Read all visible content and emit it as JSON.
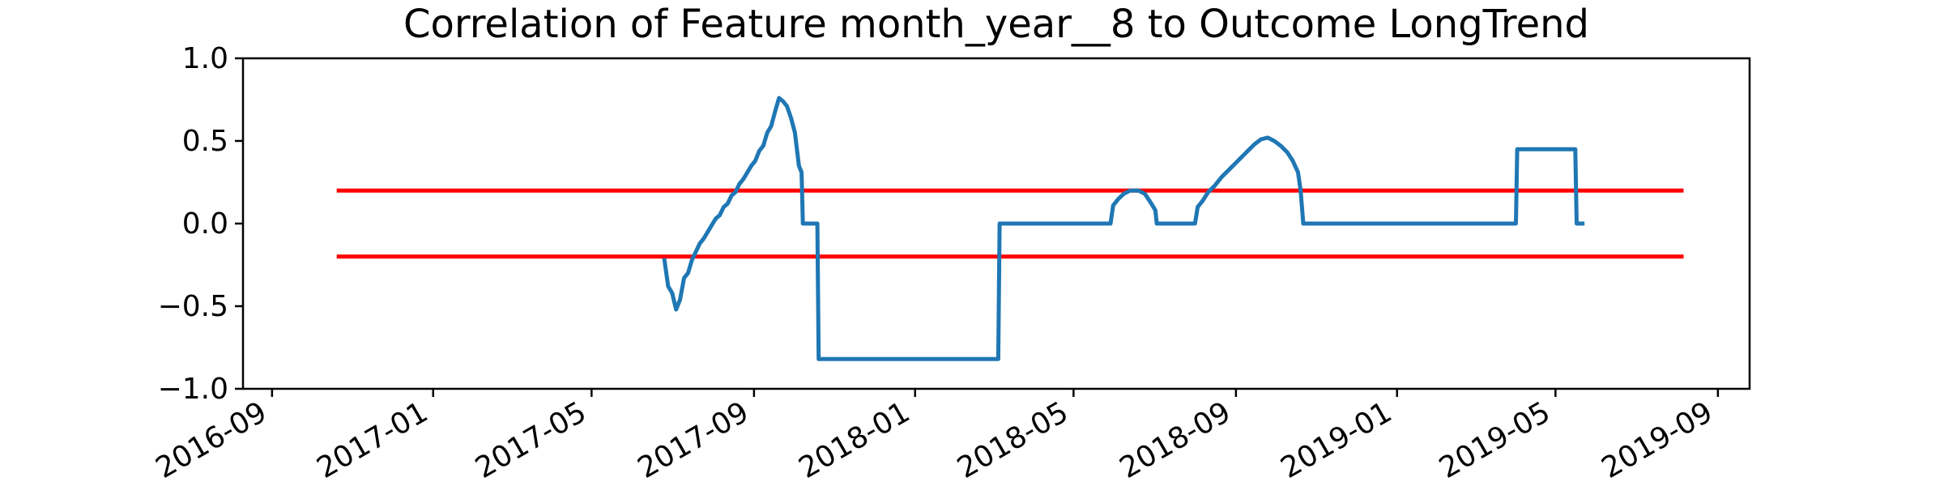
{
  "chart_data": {
    "type": "line",
    "title": "Correlation of Feature month_year__8 to Outcome LongTrend",
    "xlabel": "",
    "ylabel": "",
    "x_axis": "date",
    "xlim": [
      "2016-08-10",
      "2019-09-25"
    ],
    "ylim": [
      -1.0,
      1.0
    ],
    "x_ticks": [
      "2016-09",
      "2017-01",
      "2017-05",
      "2017-09",
      "2018-01",
      "2018-05",
      "2018-09",
      "2019-01",
      "2019-05",
      "2019-09"
    ],
    "y_ticks": [
      "1.0",
      "0.5",
      "0.0",
      "−0.5",
      "−1.0"
    ],
    "grid": false,
    "legend": "none",
    "series": [
      {
        "color": "#1f77b4",
        "points": [
          [
            "2017-06-25",
            -0.21
          ],
          [
            "2017-06-28",
            -0.38
          ],
          [
            "2017-07-01",
            -0.42
          ],
          [
            "2017-07-04",
            -0.52
          ],
          [
            "2017-07-07",
            -0.46
          ],
          [
            "2017-07-10",
            -0.33
          ],
          [
            "2017-07-13",
            -0.3
          ],
          [
            "2017-07-16",
            -0.22
          ],
          [
            "2017-07-19",
            -0.17
          ],
          [
            "2017-07-22",
            -0.12
          ],
          [
            "2017-07-25",
            -0.09
          ],
          [
            "2017-07-28",
            -0.05
          ],
          [
            "2017-07-31",
            -0.01
          ],
          [
            "2017-08-03",
            0.03
          ],
          [
            "2017-08-06",
            0.05
          ],
          [
            "2017-08-09",
            0.1
          ],
          [
            "2017-08-12",
            0.12
          ],
          [
            "2017-08-15",
            0.17
          ],
          [
            "2017-08-18",
            0.19
          ],
          [
            "2017-08-21",
            0.24
          ],
          [
            "2017-08-24",
            0.27
          ],
          [
            "2017-08-27",
            0.31
          ],
          [
            "2017-08-30",
            0.35
          ],
          [
            "2017-09-02",
            0.38
          ],
          [
            "2017-09-05",
            0.44
          ],
          [
            "2017-09-08",
            0.47
          ],
          [
            "2017-09-11",
            0.55
          ],
          [
            "2017-09-14",
            0.59
          ],
          [
            "2017-09-17",
            0.68
          ],
          [
            "2017-09-20",
            0.76
          ],
          [
            "2017-09-23",
            0.74
          ],
          [
            "2017-09-26",
            0.71
          ],
          [
            "2017-09-29",
            0.64
          ],
          [
            "2017-10-02",
            0.55
          ],
          [
            "2017-10-05",
            0.35
          ],
          [
            "2017-10-07",
            0.31
          ],
          [
            "2017-10-08",
            0.0
          ],
          [
            "2017-10-19",
            0.0
          ],
          [
            "2017-10-20",
            -0.82
          ],
          [
            "2018-03-05",
            -0.82
          ],
          [
            "2018-03-06",
            0.0
          ],
          [
            "2018-05-29",
            0.0
          ],
          [
            "2018-05-31",
            0.11
          ],
          [
            "2018-06-04",
            0.15
          ],
          [
            "2018-06-08",
            0.18
          ],
          [
            "2018-06-13",
            0.2
          ],
          [
            "2018-06-19",
            0.2
          ],
          [
            "2018-06-24",
            0.18
          ],
          [
            "2018-06-29",
            0.12
          ],
          [
            "2018-07-02",
            0.08
          ],
          [
            "2018-07-03",
            0.0
          ],
          [
            "2018-08-01",
            0.0
          ],
          [
            "2018-08-03",
            0.1
          ],
          [
            "2018-08-07",
            0.14
          ],
          [
            "2018-08-11",
            0.19
          ],
          [
            "2018-08-16",
            0.23
          ],
          [
            "2018-08-21",
            0.28
          ],
          [
            "2018-08-26",
            0.32
          ],
          [
            "2018-08-31",
            0.36
          ],
          [
            "2018-09-05",
            0.4
          ],
          [
            "2018-09-10",
            0.44
          ],
          [
            "2018-09-15",
            0.48
          ],
          [
            "2018-09-20",
            0.51
          ],
          [
            "2018-09-25",
            0.52
          ],
          [
            "2018-09-30",
            0.5
          ],
          [
            "2018-10-05",
            0.47
          ],
          [
            "2018-10-10",
            0.43
          ],
          [
            "2018-10-14",
            0.38
          ],
          [
            "2018-10-18",
            0.31
          ],
          [
            "2018-10-20",
            0.2
          ],
          [
            "2018-10-22",
            0.0
          ],
          [
            "2019-04-01",
            0.0
          ],
          [
            "2019-04-02",
            0.45
          ],
          [
            "2019-05-16",
            0.45
          ],
          [
            "2019-05-17",
            0.0
          ],
          [
            "2019-05-23",
            0.0
          ]
        ]
      },
      {
        "color": "#ff0000",
        "points": [
          [
            "2016-10-20",
            0.2
          ],
          [
            "2019-08-06",
            0.2
          ]
        ]
      },
      {
        "color": "#ff0000",
        "points": [
          [
            "2016-10-20",
            -0.2
          ],
          [
            "2019-08-06",
            -0.2
          ]
        ]
      }
    ]
  }
}
